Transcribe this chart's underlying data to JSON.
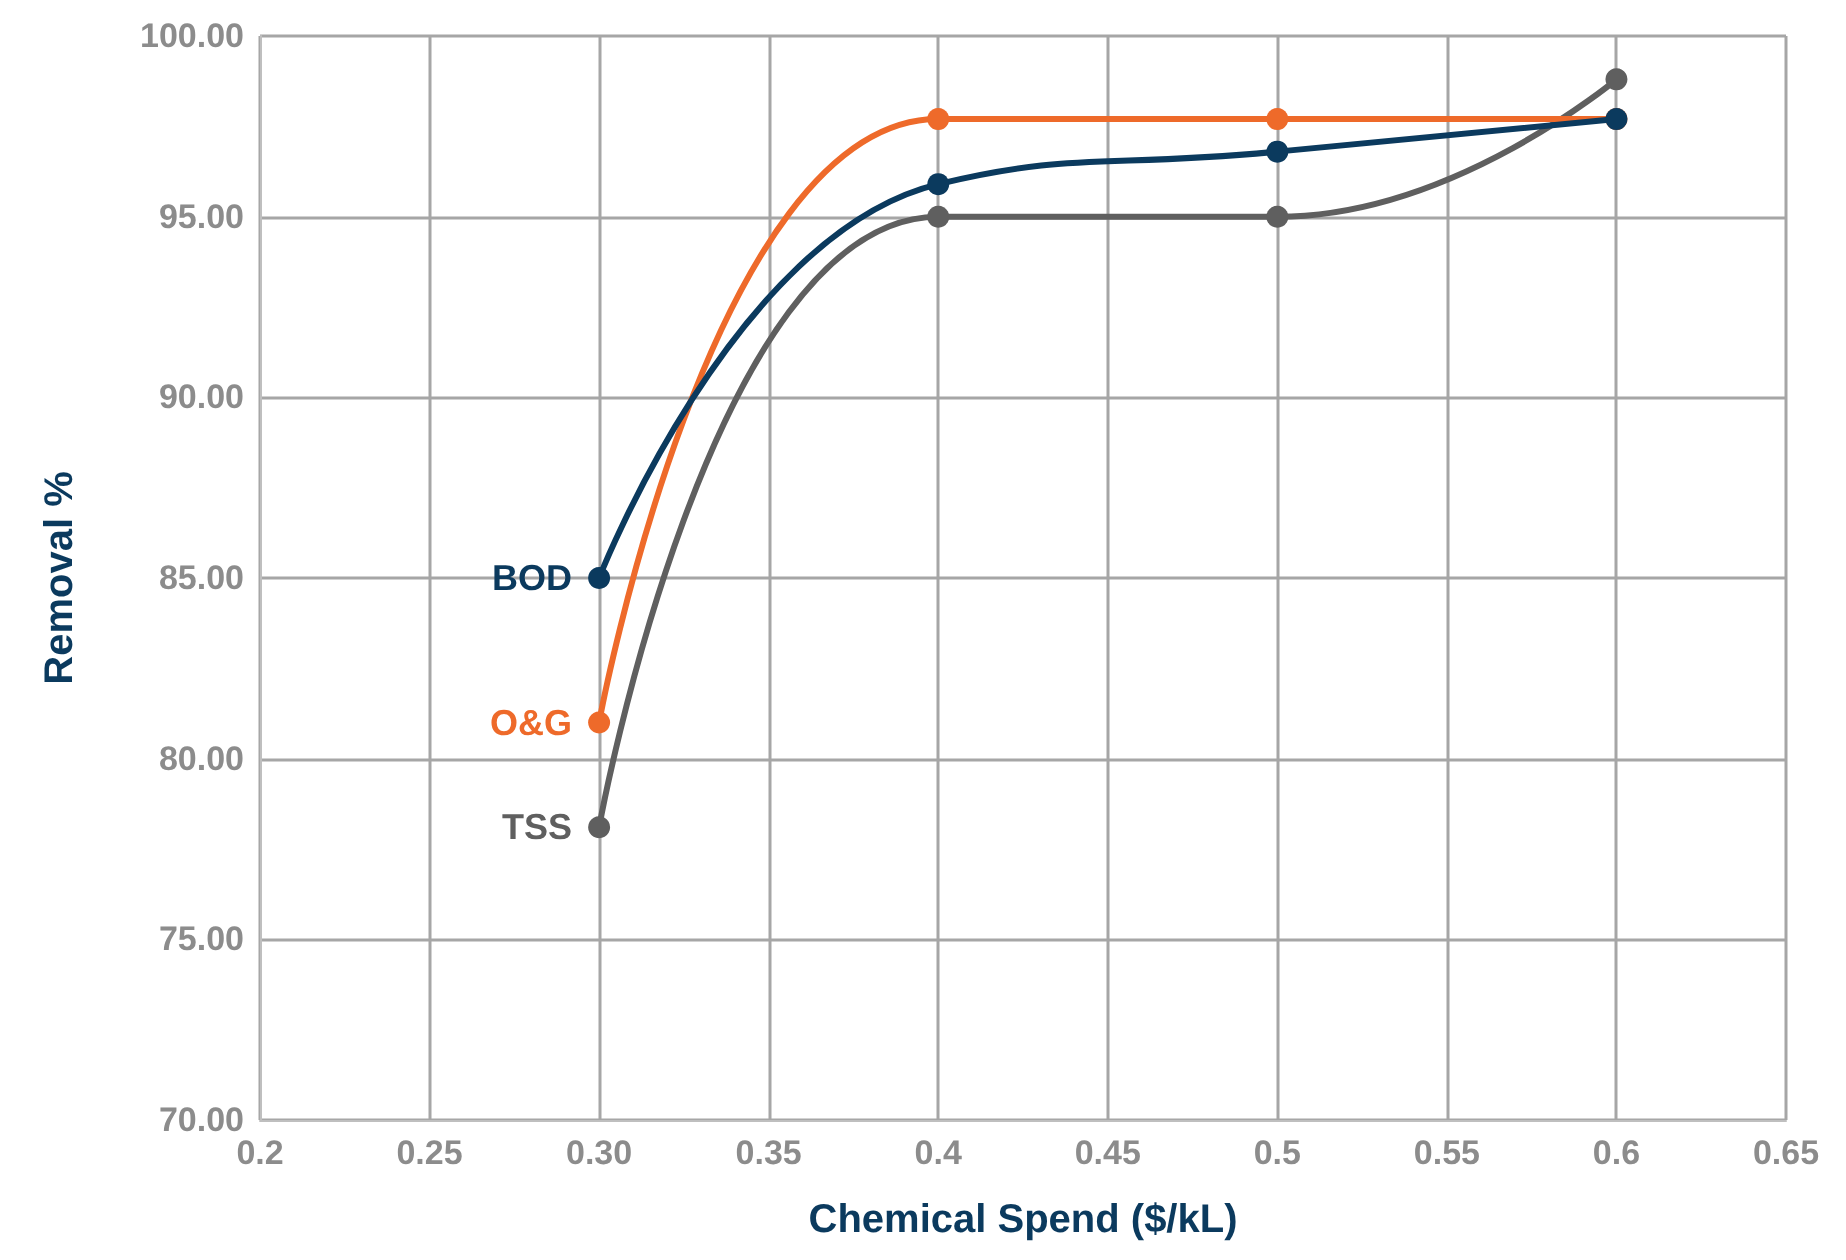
{
  "chart_data": {
    "type": "line",
    "xlabel": "Chemical Spend ($/kL)",
    "ylabel": "Removal %",
    "x": [
      0.3,
      0.4,
      0.5,
      0.6
    ],
    "series": [
      {
        "name": "BOD",
        "color": "#0b3a5e",
        "values": [
          85.0,
          95.9,
          96.8,
          97.7
        ]
      },
      {
        "name": "O&G",
        "color": "#ee6a2a",
        "values": [
          81.0,
          97.7,
          97.7,
          97.7
        ]
      },
      {
        "name": "TSS",
        "color": "#5f5f5f",
        "values": [
          78.1,
          95.0,
          95.0,
          98.8
        ]
      }
    ],
    "xlim": [
      0.2,
      0.65
    ],
    "xticks": [
      0.2,
      0.25,
      {
        "value": 0.3,
        "label": "0.30"
      },
      0.35,
      0.4,
      0.45,
      0.5,
      0.55,
      0.6,
      0.65
    ],
    "ylim": [
      70,
      100
    ],
    "yticks": [
      {
        "value": 70,
        "label": "70.00"
      },
      {
        "value": 75,
        "label": "75.00"
      },
      {
        "value": 80,
        "label": "80.00"
      },
      {
        "value": 85,
        "label": "85.00"
      },
      {
        "value": 90,
        "label": "90.00"
      },
      {
        "value": 95,
        "label": "95.00"
      },
      {
        "value": 100,
        "label": "100.00"
      }
    ],
    "grid": true,
    "legend": false,
    "marker": "circle",
    "line_style": "solid"
  }
}
